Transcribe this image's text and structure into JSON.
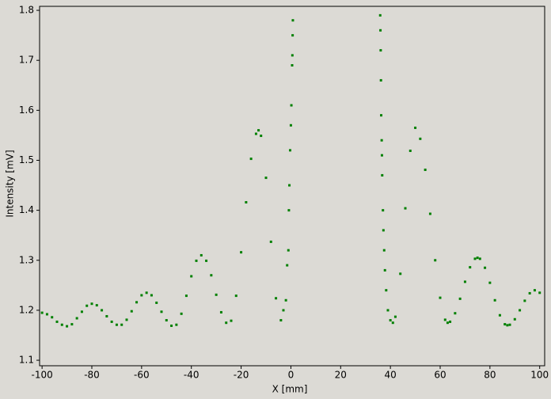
{
  "chart_data": {
    "type": "scatter",
    "x_label": "X [mm]",
    "y_label": "Intensity [mV]",
    "color": "#008000",
    "xlim": [
      -101,
      102
    ],
    "ylim": [
      1.089,
      1.808
    ],
    "xticks": [
      -100,
      -80,
      -60,
      -40,
      -20,
      0,
      20,
      40,
      60,
      80,
      100
    ],
    "yticks": [
      1.1,
      1.2,
      1.3,
      1.4,
      1.5,
      1.6,
      1.7,
      1.8
    ],
    "x": [
      -100,
      -98,
      -96,
      -94,
      -92,
      -90,
      -88,
      -86,
      -84,
      -82,
      -80,
      -78,
      -76,
      -74,
      -72,
      -70,
      -68,
      -66,
      -64,
      -62,
      -60,
      -58,
      -56,
      -54,
      -52,
      -50,
      -48,
      -46,
      -44,
      -42,
      -40,
      -38,
      -36,
      -34,
      -32,
      -30,
      -28,
      -26,
      -24,
      -22,
      -20,
      -18,
      -16,
      -14,
      -13,
      -12,
      -10,
      -8,
      -6,
      -4,
      -3,
      -2,
      -1.5,
      -1,
      -0.8,
      -0.6,
      -0.3,
      0,
      0.2,
      0.5,
      0.6,
      0.7,
      0.8,
      35.9,
      36,
      36.1,
      36.2,
      36.3,
      36.5,
      36.6,
      36.7,
      37,
      37.2,
      37.5,
      37.8,
      38.3,
      39,
      40,
      41,
      42,
      44,
      46,
      48,
      50,
      52,
      54,
      56,
      58,
      60,
      62,
      63,
      64,
      66,
      68,
      70,
      72,
      74,
      75,
      76,
      78,
      80,
      82,
      84,
      86,
      87,
      88,
      90,
      92,
      94,
      96,
      98,
      100
    ],
    "y": [
      1.195,
      1.192,
      1.186,
      1.177,
      1.171,
      1.168,
      1.172,
      1.184,
      1.197,
      1.209,
      1.213,
      1.21,
      1.2,
      1.188,
      1.177,
      1.171,
      1.171,
      1.181,
      1.198,
      1.216,
      1.23,
      1.235,
      1.23,
      1.215,
      1.197,
      1.18,
      1.169,
      1.171,
      1.193,
      1.229,
      1.268,
      1.299,
      1.31,
      1.299,
      1.27,
      1.231,
      1.196,
      1.175,
      1.179,
      1.229,
      1.316,
      1.416,
      1.503,
      1.553,
      1.56,
      1.549,
      1.465,
      1.337,
      1.224,
      1.18,
      1.2,
      1.22,
      1.29,
      1.32,
      1.4,
      1.45,
      1.52,
      1.57,
      1.61,
      1.69,
      1.71,
      1.75,
      1.78,
      1.79,
      1.76,
      1.72,
      1.66,
      1.59,
      1.54,
      1.51,
      1.47,
      1.4,
      1.36,
      1.32,
      1.28,
      1.24,
      1.2,
      1.18,
      1.175,
      1.187,
      1.273,
      1.404,
      1.519,
      1.565,
      1.543,
      1.481,
      1.393,
      1.3,
      1.225,
      1.181,
      1.175,
      1.177,
      1.194,
      1.223,
      1.257,
      1.286,
      1.303,
      1.305,
      1.303,
      1.285,
      1.255,
      1.22,
      1.19,
      1.172,
      1.17,
      1.171,
      1.182,
      1.2,
      1.219,
      1.234,
      1.24,
      1.235
    ]
  }
}
